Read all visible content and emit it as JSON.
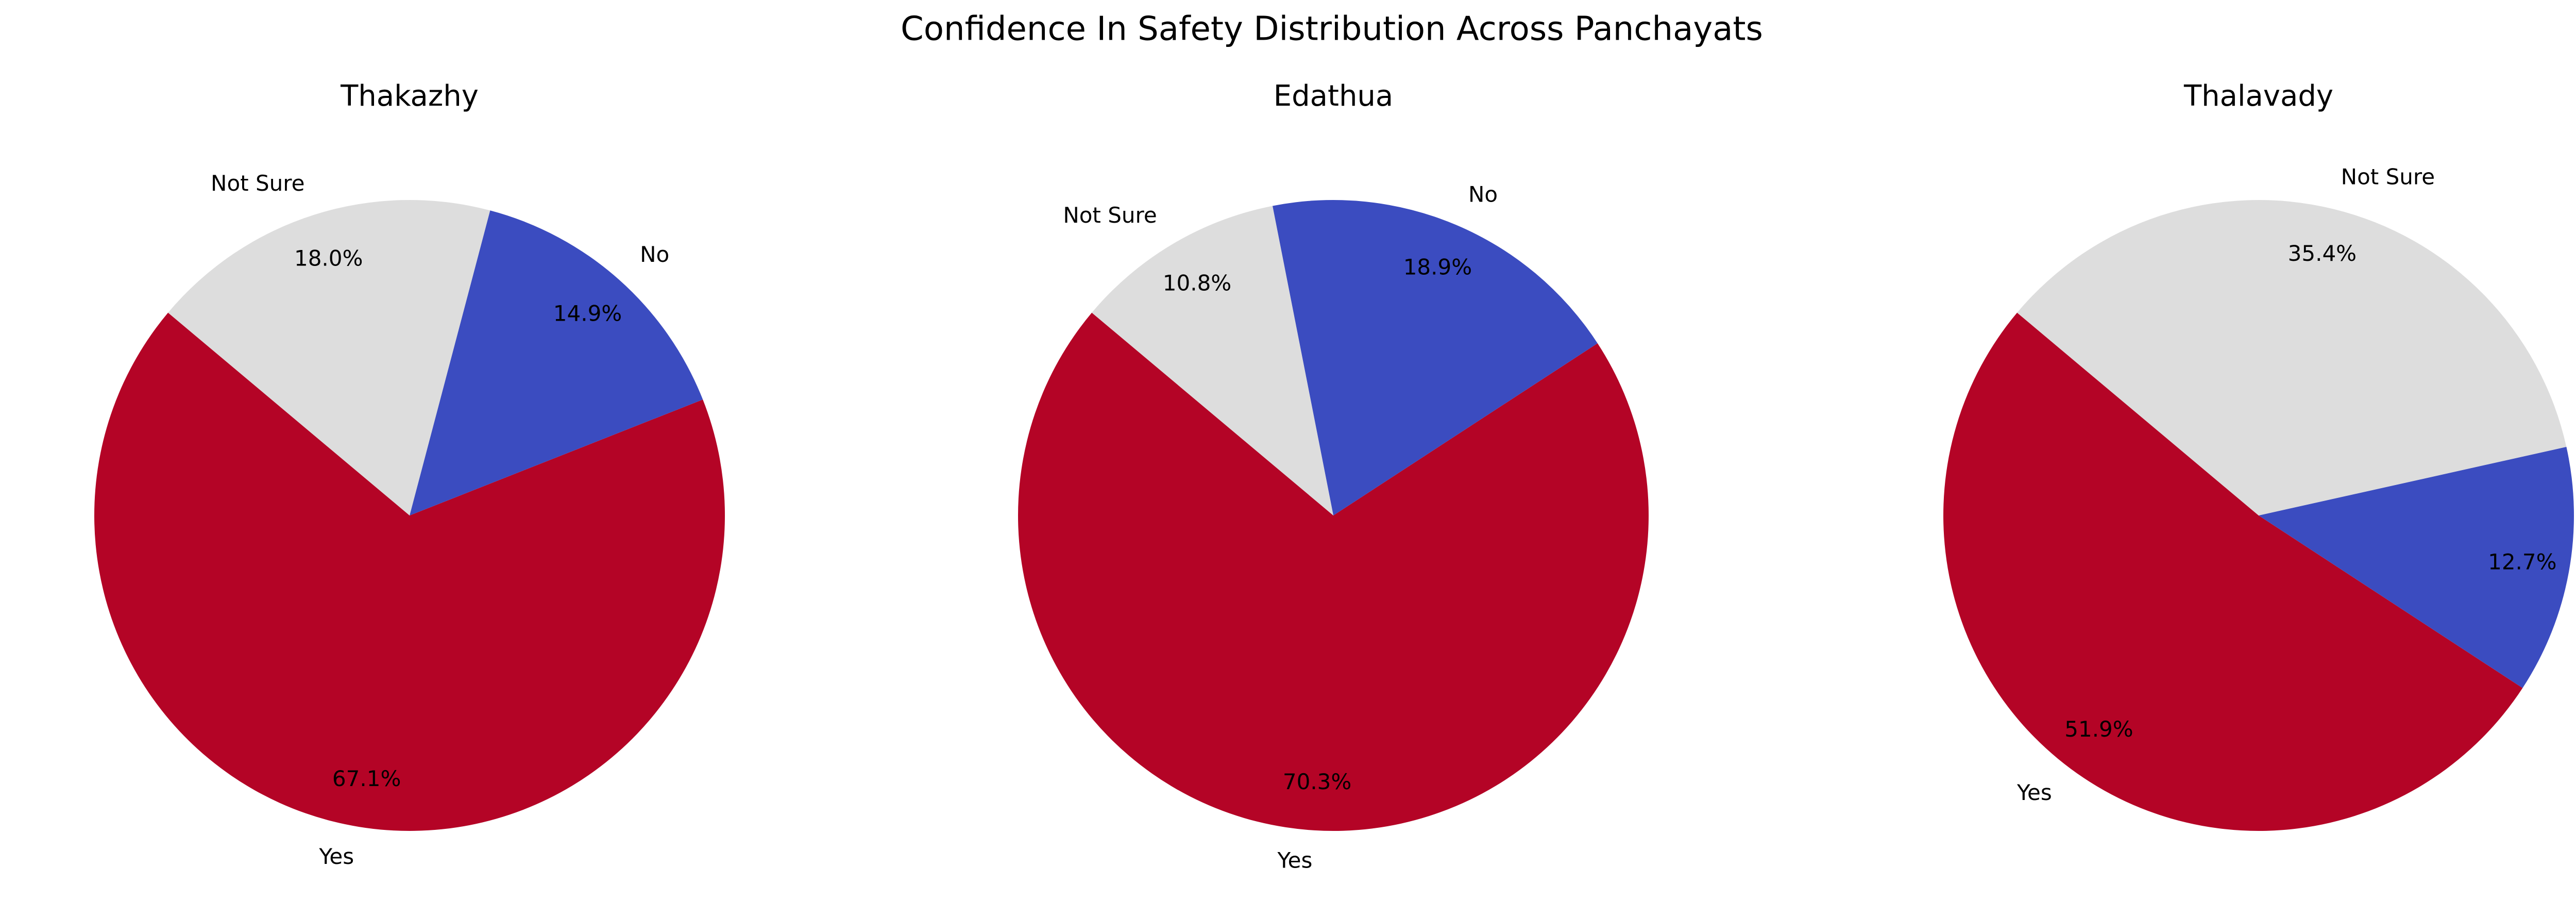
{
  "figure": {
    "title": "Confidence In Safety Distribution Across Panchayats"
  },
  "colors": {
    "Yes": "#b40426",
    "No": "#3b4cc0",
    "Not Sure": "#dddddd"
  },
  "chart_data": [
    {
      "type": "pie",
      "title": "Thakazhy",
      "categories": [
        "Yes",
        "No",
        "Not Sure"
      ],
      "values": [
        67.1,
        14.9,
        18.0
      ],
      "labels": [
        "Yes",
        "No",
        "Not Sure"
      ],
      "pct_labels": [
        "67.1%",
        "14.9%",
        "18.0%"
      ],
      "start_angle_deg": 140,
      "direction": "counterclockwise",
      "legend": "none"
    },
    {
      "type": "pie",
      "title": "Edathua",
      "categories": [
        "Yes",
        "No",
        "Not Sure"
      ],
      "values": [
        70.3,
        18.9,
        10.8
      ],
      "labels": [
        "Yes",
        "No",
        "Not Sure"
      ],
      "pct_labels": [
        "70.3%",
        "18.9%",
        "10.8%"
      ],
      "start_angle_deg": 140,
      "direction": "counterclockwise",
      "legend": "none"
    },
    {
      "type": "pie",
      "title": "Thalavady",
      "categories": [
        "Yes",
        "No",
        "Not Sure"
      ],
      "values": [
        51.9,
        12.7,
        35.4
      ],
      "labels": [
        "Yes",
        "No",
        "Not Sure"
      ],
      "pct_labels": [
        "51.9%",
        "12.7%",
        "35.4%"
      ],
      "start_angle_deg": 140,
      "direction": "counterclockwise",
      "legend": "none"
    }
  ]
}
